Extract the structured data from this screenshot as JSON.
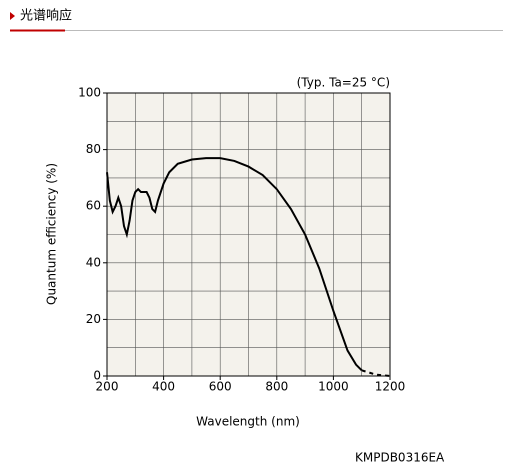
{
  "header": {
    "title": "光谱响应"
  },
  "chart_data": {
    "type": "line",
    "annotation": "(Typ. Ta=25 °C)",
    "footnote": "KMPDB0316EA",
    "x_label": "Wavelength (nm)",
    "y_label": "Quantum efficiency (%)",
    "xlim": [
      200,
      1200
    ],
    "ylim": [
      0,
      100
    ],
    "xticks": [
      200,
      400,
      600,
      800,
      1000,
      1200
    ],
    "yticks": [
      0,
      20,
      40,
      60,
      80,
      100
    ],
    "grid": true,
    "series": [
      {
        "color": "#000000",
        "line_style": "solid",
        "x": [
          200,
          210,
          220,
          230,
          240,
          250,
          260,
          270,
          280,
          290,
          300,
          310,
          320,
          340,
          350,
          360,
          370,
          380,
          400,
          420,
          450,
          500,
          550,
          600,
          650,
          700,
          750,
          800,
          850,
          900,
          950,
          1000,
          1050,
          1080,
          1100
        ],
        "values": [
          72,
          62,
          58,
          60,
          63,
          60,
          53,
          50,
          55,
          62,
          65,
          66,
          65,
          65,
          63,
          59,
          58,
          62,
          68,
          72,
          75,
          76.5,
          77,
          77,
          76,
          74,
          71,
          66,
          59,
          50,
          38,
          23,
          9,
          4,
          2
        ]
      },
      {
        "color": "#000000",
        "line_style": "dashed",
        "x": [
          1100,
          1150,
          1200
        ],
        "values": [
          2,
          0.5,
          0
        ]
      }
    ]
  }
}
